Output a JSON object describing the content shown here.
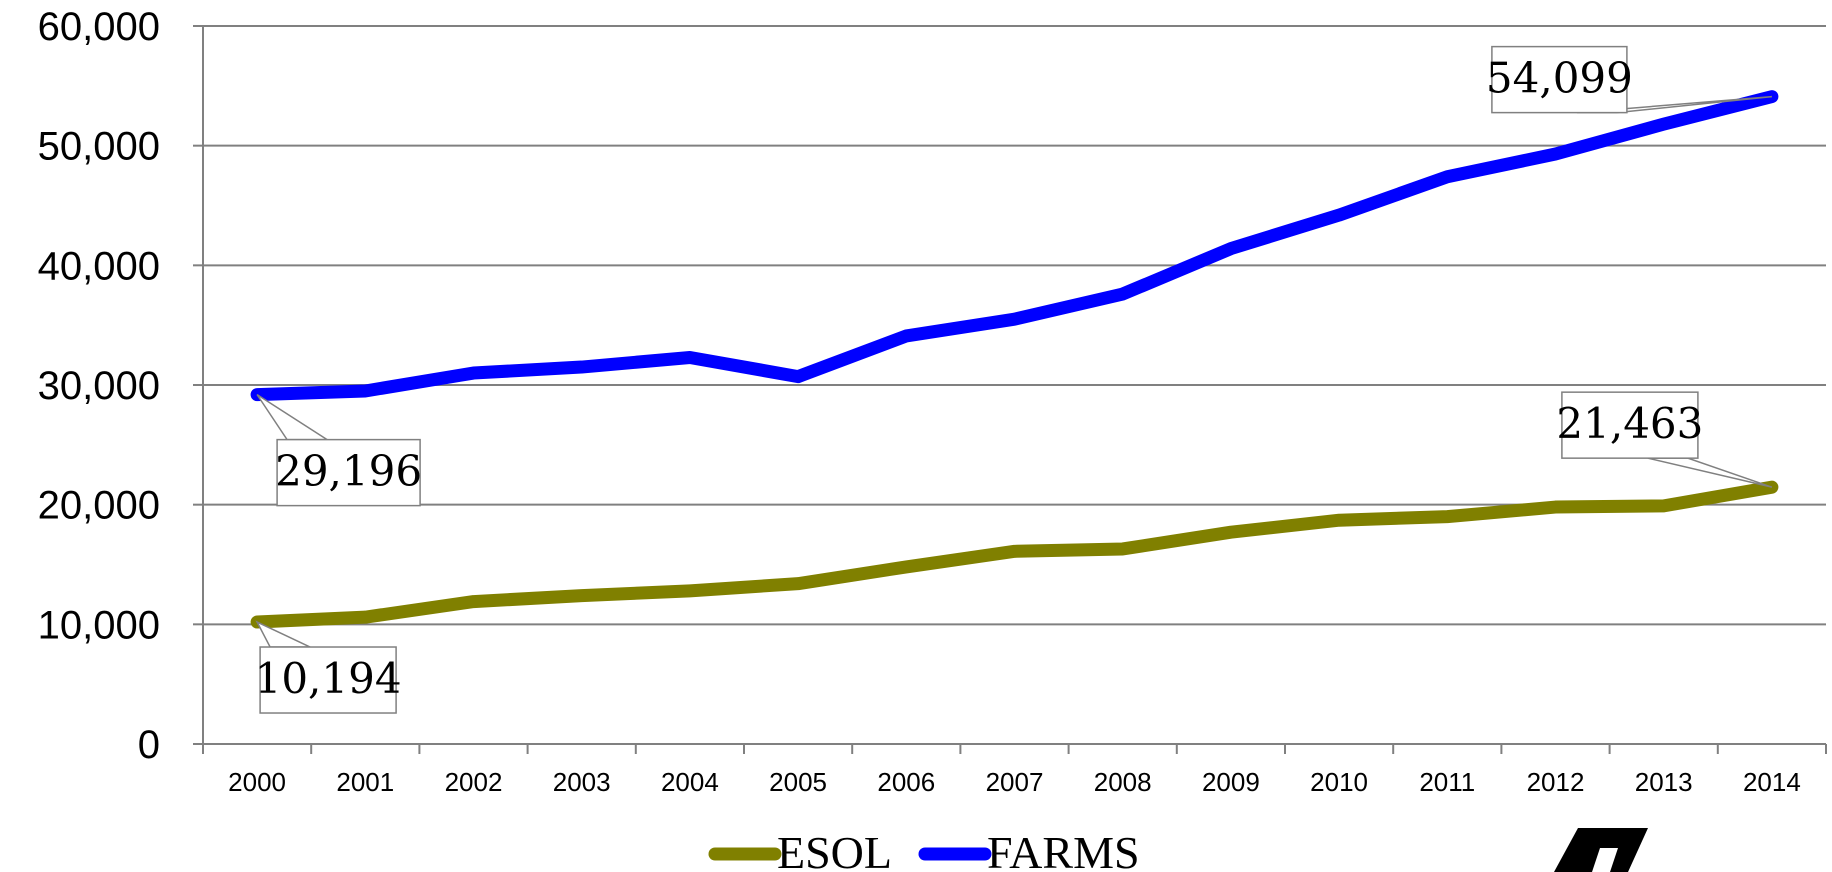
{
  "chart_data": {
    "type": "line",
    "title": "",
    "xlabel": "",
    "ylabel": "",
    "categories": [
      "2000",
      "2001",
      "2002",
      "2003",
      "2004",
      "2005",
      "2006",
      "2007",
      "2008",
      "2009",
      "2010",
      "2011",
      "2012",
      "2013",
      "2014"
    ],
    "ylim": [
      0,
      60000
    ],
    "yticks": [
      "0",
      "10,000",
      "20,000",
      "30,000",
      "40,000",
      "50,000",
      "60,000"
    ],
    "grid": true,
    "legend": "bottom",
    "series": [
      {
        "name": "ESOL",
        "color": "#808000",
        "values": [
          10194,
          10600,
          11900,
          12400,
          12800,
          13400,
          14800,
          16100,
          16300,
          17700,
          18700,
          19000,
          19800,
          19900,
          21463
        ]
      },
      {
        "name": "FARMS",
        "color": "#0000ff",
        "values": [
          29196,
          29500,
          31000,
          31500,
          32300,
          30700,
          34100,
          35500,
          37600,
          41400,
          44200,
          47400,
          49300,
          51800,
          54099
        ]
      }
    ],
    "annotations": [
      {
        "series": "FARMS",
        "x": "2000",
        "text": "29,196"
      },
      {
        "series": "FARMS",
        "x": "2014",
        "text": "54,099"
      },
      {
        "series": "ESOL",
        "x": "2000",
        "text": "10,194"
      },
      {
        "series": "ESOL",
        "x": "2014",
        "text": "21,463"
      }
    ]
  }
}
